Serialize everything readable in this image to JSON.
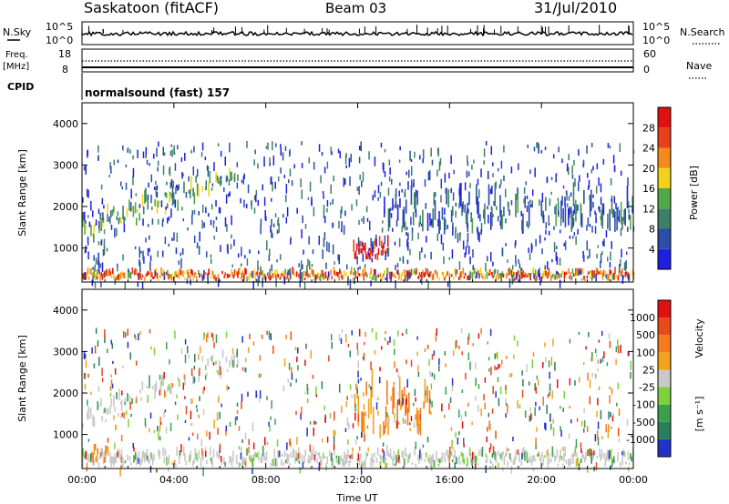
{
  "header": {
    "station": "Saskatoon (fitACF)",
    "beam": "Beam 03",
    "date": "31/Jul/2010"
  },
  "panels": {
    "noise": {
      "left_label": "N.Sky",
      "left_ticks": [
        "10^5",
        "10^0"
      ],
      "right_ticks": [
        "10^5",
        "10^0"
      ],
      "right_label": "N.Search"
    },
    "freq": {
      "left_label_1": "Freq.",
      "left_label_2": "[MHz]",
      "left_ticks": [
        "18",
        "8"
      ],
      "right_ticks": [
        "60",
        "0"
      ],
      "right_label": "Nave"
    },
    "cpid": {
      "left_label": "CPID",
      "text": "normalsound (fast) 157"
    }
  },
  "chart_data": [
    {
      "type": "heatmap",
      "title": "Power",
      "ylabel": "Slant Range [km]",
      "xlabel": "",
      "x_ticks": [
        "00:00",
        "04:00",
        "08:00",
        "12:00",
        "16:00",
        "20:00",
        "00:00"
      ],
      "y_ticks": [
        1000,
        2000,
        3000,
        4000
      ],
      "ylim": [
        180,
        4500
      ],
      "xlim_hours": [
        0,
        24
      ],
      "colorbar": {
        "label": "Power [dB]",
        "ticks": [
          "4",
          "8",
          "12",
          "16",
          "20",
          "24",
          "28"
        ],
        "colors": [
          "#1f1fe0",
          "#2a4da8",
          "#3f7f6a",
          "#4fa84a",
          "#f2d21c",
          "#f48a1c",
          "#e8401a",
          "#e21010"
        ]
      },
      "features": [
        {
          "name": "near-range band",
          "t_start": 0.0,
          "t_end": 24.0,
          "r_min": 200,
          "r_max": 500,
          "power_db": 24
        },
        {
          "name": "morning arc",
          "t_start": 0.0,
          "t_end": 6.8,
          "r_min": 1300,
          "r_max": 3300,
          "power_db": 14
        },
        {
          "name": "noon patch",
          "t_start": 11.8,
          "t_end": 13.3,
          "r_min": 700,
          "r_max": 1300,
          "power_db": 28
        },
        {
          "name": "evening band",
          "t_start": 13.0,
          "t_end": 24.0,
          "r_min": 1300,
          "r_max": 2600,
          "power_db": 10
        }
      ]
    },
    {
      "type": "heatmap",
      "title": "Velocity",
      "ylabel": "Slant Range [km]",
      "xlabel": "Time UT",
      "x_ticks": [
        "00:00",
        "04:00",
        "08:00",
        "12:00",
        "16:00",
        "20:00",
        "00:00"
      ],
      "y_ticks": [
        1000,
        2000,
        3000,
        4000
      ],
      "ylim": [
        180,
        4500
      ],
      "xlim_hours": [
        0,
        24
      ],
      "colorbar": {
        "label": "Velocity",
        "unit": "[m s⁻¹]",
        "ticks": [
          "1000",
          "500",
          "100",
          "25",
          "-25",
          "-100",
          "-500",
          "-1000"
        ],
        "colors": [
          "#2233cc",
          "#2a7f5a",
          "#3aa04a",
          "#7bd23c",
          "#c8c8c8",
          "#f2a21c",
          "#f47a1c",
          "#e84a1a",
          "#e21010"
        ]
      },
      "features": [
        {
          "name": "ground-scatter band",
          "t_start": 0.0,
          "t_end": 24.0,
          "r_min": 200,
          "r_max": 700,
          "velocity": 0
        },
        {
          "name": "morning arc",
          "t_start": 0.0,
          "t_end": 6.8,
          "r_min": 1300,
          "r_max": 3300,
          "velocity": 0
        },
        {
          "name": "early patch",
          "t_start": 0.1,
          "t_end": 1.2,
          "r_min": 250,
          "r_max": 900,
          "velocity": -300
        },
        {
          "name": "noon flow",
          "t_start": 11.8,
          "t_end": 15.3,
          "r_min": 900,
          "r_max": 2700,
          "velocity": -200
        }
      ]
    }
  ]
}
